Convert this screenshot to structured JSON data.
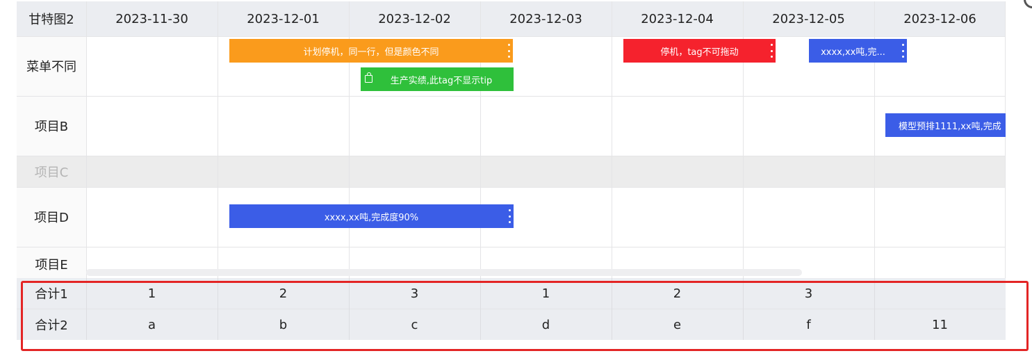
{
  "header": {
    "title": "甘特图2",
    "dates": [
      "2023-11-30",
      "2023-12-01",
      "2023-12-02",
      "2023-12-03",
      "2023-12-04",
      "2023-12-05",
      "2023-12-06"
    ]
  },
  "rows": [
    {
      "label": "菜单不同",
      "disabled": false
    },
    {
      "label": "项目B",
      "disabled": false
    },
    {
      "label": "项目C",
      "disabled": true
    },
    {
      "label": "项目D",
      "disabled": false
    },
    {
      "label": "项目E",
      "disabled": false
    }
  ],
  "bars": [
    {
      "text": "计划停机，同一行，但是颜色不同",
      "color": "#fa9b1c",
      "menu": true,
      "icon": ""
    },
    {
      "text": "生产实绩,此tag不显示tip",
      "color": "#2fc03b",
      "menu": false,
      "icon": "shopping-bag-icon"
    },
    {
      "text": "停机，tag不可拖动",
      "color": "#f5222d",
      "menu": true,
      "icon": ""
    },
    {
      "text": "xxxx,xx吨,完...",
      "color": "#3b5de7",
      "menu": true,
      "icon": ""
    },
    {
      "text": "模型预排1111,xx吨,完成",
      "color": "#3b5de7",
      "menu": false,
      "icon": ""
    },
    {
      "text": "xxxx,xx吨,完成度90%",
      "color": "#3b5de7",
      "menu": true,
      "icon": ""
    }
  ],
  "footer": [
    {
      "label": "合计1",
      "values": [
        "1",
        "2",
        "3",
        "1",
        "2",
        "3",
        ""
      ]
    },
    {
      "label": "合计2",
      "values": [
        "a",
        "b",
        "c",
        "d",
        "e",
        "f",
        "11"
      ]
    }
  ],
  "colors": {
    "header_bg": "#ebedf1",
    "grid": "#e4e4e6",
    "highlight": "#e32525"
  }
}
